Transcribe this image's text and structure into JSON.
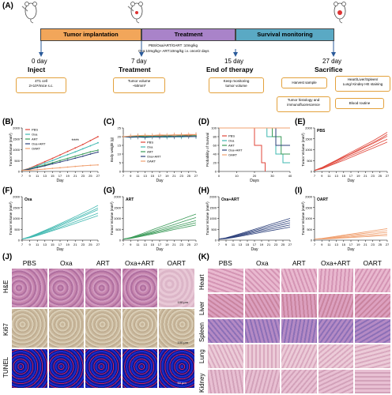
{
  "panel_labels": {
    "A": "(A)",
    "B": "(B)",
    "C": "(C)",
    "D": "(D)",
    "E": "(E)",
    "F": "(F)",
    "G": "(G)",
    "H": "(H)",
    "I": "(I)",
    "J": "(J)",
    "K": "(K)"
  },
  "timeline": {
    "phases": [
      "Tumor implantation",
      "Treatment",
      "Survival monitoring"
    ],
    "dosing": [
      "PBS/Oxa/ART/OART :10mg/kg",
      "Oxa:10mg/kg+ ART:10mg/kg i.v. once/2 days"
    ],
    "days": [
      "0 day",
      "7 day",
      "15 day",
      "27 day"
    ],
    "events": [
      "Inject",
      "Treatment",
      "End of therapy",
      "Sacrifice"
    ],
    "boxes": {
      "inject": [
        "4T1 cell",
        "2×10⁶/mice s.c."
      ],
      "treatment": [
        "Tumor volume",
        "~50mm³"
      ],
      "end": [
        "Keep monitoring",
        "tumor volume"
      ],
      "harvest": "Harvest sample",
      "staining": [
        "Heart/Liver/Spleen/",
        "Lung/ Kindey HE staining"
      ],
      "histology": [
        "Tumor histology and",
        "immunofluorescence"
      ],
      "blood": "Blood routine"
    }
  },
  "colors": {
    "PBS": "#e0463a",
    "Oxa": "#3fb8b0",
    "ART": "#3a9a58",
    "OxaART": "#2b3f7a",
    "OART": "#f0a070",
    "accent": "#e3a13c",
    "implant": "#f2a65a",
    "treat": "#a983c9",
    "survive": "#5aa9c4"
  },
  "chart_data": [
    {
      "type": "line",
      "panel": "B",
      "xlabel": "Day",
      "ylabel": "Tumor Volume (mm³)",
      "x": [
        7,
        9,
        11,
        13,
        15,
        17,
        19,
        21,
        23,
        25,
        27
      ],
      "xticks": [
        "7",
        "9",
        "11",
        "13",
        "15",
        "17",
        "19",
        "21",
        "23",
        "25",
        "27"
      ],
      "yticks": [
        "0",
        "500",
        "1000",
        "1500",
        "2000"
      ],
      "ylim": [
        0,
        2000
      ],
      "annotation": "****",
      "series": [
        {
          "name": "PBS",
          "values": [
            50,
            150,
            300,
            450,
            600,
            760,
            920,
            1080,
            1240,
            1420,
            1600
          ]
        },
        {
          "name": "Oxa",
          "values": [
            50,
            130,
            250,
            380,
            500,
            640,
            770,
            900,
            1040,
            1180,
            1320
          ]
        },
        {
          "name": "ART",
          "values": [
            50,
            110,
            200,
            300,
            400,
            500,
            600,
            700,
            800,
            900,
            980
          ]
        },
        {
          "name": "Oxa+ART",
          "values": [
            50,
            100,
            180,
            260,
            350,
            430,
            520,
            610,
            700,
            800,
            890
          ]
        },
        {
          "name": "OART",
          "values": [
            50,
            60,
            80,
            110,
            140,
            170,
            200,
            230,
            260,
            280,
            300
          ]
        }
      ]
    },
    {
      "type": "line",
      "panel": "C",
      "xlabel": "Day",
      "ylabel": "Body weight (g)",
      "x": [
        7,
        9,
        11,
        13,
        15,
        17,
        19,
        21,
        23,
        25,
        27
      ],
      "xticks": [
        "7",
        "9",
        "11",
        "13",
        "15",
        "17",
        "19",
        "21",
        "23",
        "25",
        "27"
      ],
      "yticks": [
        "0",
        "5",
        "10",
        "15",
        "20",
        "25"
      ],
      "ylim": [
        0,
        25
      ],
      "series": [
        {
          "name": "PBS",
          "values": [
            20,
            20.2,
            20.5,
            20.3,
            20.6,
            20.8,
            20.5,
            20.9,
            21,
            20.8,
            21.2
          ]
        },
        {
          "name": "Oxa",
          "values": [
            20,
            19.6,
            19.8,
            19.5,
            19.7,
            19.9,
            19.6,
            20,
            19.8,
            20.1,
            20
          ]
        },
        {
          "name": "ART",
          "values": [
            20,
            20.1,
            20.3,
            20.2,
            20.4,
            20.2,
            20.5,
            20.3,
            20.6,
            20.4,
            20.7
          ]
        },
        {
          "name": "Oxa+ART",
          "values": [
            20,
            19.8,
            19.9,
            19.7,
            20,
            19.8,
            20.1,
            19.9,
            20.2,
            20,
            20.1
          ]
        },
        {
          "name": "OART",
          "values": [
            20,
            20.4,
            20.6,
            20.8,
            20.7,
            21,
            20.9,
            21.1,
            21,
            21.3,
            21.2
          ]
        }
      ]
    },
    {
      "type": "line",
      "panel": "D",
      "xlabel": "Days",
      "ylabel": "Probability of Survival",
      "xticks": [
        "0",
        "10",
        "20",
        "30",
        "40"
      ],
      "yticks": [
        "0",
        "20",
        "40",
        "60",
        "80",
        "100"
      ],
      "xlim": [
        0,
        40
      ],
      "ylim": [
        0,
        100
      ],
      "series": [
        {
          "name": "PBS",
          "points": [
            [
              0,
              100
            ],
            [
              20,
              100
            ],
            [
              20,
              60
            ],
            [
              24,
              60
            ],
            [
              24,
              20
            ],
            [
              26,
              20
            ],
            [
              26,
              0
            ]
          ]
        },
        {
          "name": "Oxa",
          "points": [
            [
              0,
              100
            ],
            [
              27,
              100
            ],
            [
              27,
              80
            ],
            [
              32,
              80
            ],
            [
              32,
              40
            ],
            [
              36,
              40
            ],
            [
              36,
              20
            ],
            [
              40,
              20
            ]
          ]
        },
        {
          "name": "ART",
          "points": [
            [
              0,
              100
            ],
            [
              30,
              100
            ],
            [
              30,
              80
            ],
            [
              35,
              80
            ],
            [
              35,
              40
            ],
            [
              40,
              40
            ]
          ]
        },
        {
          "name": "Oxa+ART",
          "points": [
            [
              0,
              100
            ],
            [
              32,
              100
            ],
            [
              32,
              60
            ],
            [
              40,
              60
            ]
          ]
        },
        {
          "name": "OART",
          "points": [
            [
              0,
              100
            ],
            [
              40,
              100
            ]
          ]
        }
      ]
    },
    {
      "type": "line",
      "panel": "E",
      "group": "PBS",
      "ylabel": "Tumor Volume (mm³)",
      "xlabel": "Day",
      "yticks": [
        "0",
        "500",
        "1000",
        "1500",
        "2000"
      ],
      "ylim": [
        0,
        2000
      ],
      "x": [
        7,
        9,
        11,
        13,
        15,
        17,
        19,
        21,
        23,
        25,
        27
      ],
      "series": [
        {
          "values": [
            50,
            180,
            350,
            520,
            700,
            880,
            1050,
            1230,
            1400,
            1600,
            1800
          ]
        },
        {
          "values": [
            50,
            160,
            320,
            470,
            640,
            800,
            950,
            1120,
            1280,
            1450,
            1620
          ]
        },
        {
          "values": [
            50,
            140,
            280,
            420,
            580,
            730,
            870,
            1020,
            1170,
            1330,
            1480
          ]
        },
        {
          "values": [
            50,
            120,
            250,
            380,
            510,
            650,
            790,
            930,
            1070,
            1210,
            1350
          ]
        },
        {
          "values": [
            50,
            170,
            330,
            500,
            660,
            820,
            990,
            1160,
            1320,
            1500,
            1700
          ]
        }
      ]
    },
    {
      "type": "line",
      "panel": "F",
      "group": "Oxa",
      "ylabel": "Tumor Volume (mm³)",
      "xlabel": "Day",
      "yticks": [
        "0",
        "500",
        "1000",
        "1500",
        "2000"
      ],
      "ylim": [
        0,
        2000
      ],
      "x": [
        7,
        9,
        11,
        13,
        15,
        17,
        19,
        21,
        23,
        25,
        27
      ],
      "series": [
        {
          "values": [
            50,
            160,
            300,
            450,
            600,
            760,
            920,
            1080,
            1250,
            1420,
            1600
          ]
        },
        {
          "values": [
            50,
            140,
            260,
            390,
            520,
            660,
            800,
            950,
            1100,
            1250,
            1400
          ]
        },
        {
          "values": [
            50,
            120,
            230,
            350,
            470,
            590,
            720,
            850,
            980,
            1110,
            1240
          ]
        },
        {
          "values": [
            50,
            150,
            280,
            420,
            560,
            710,
            860,
            1010,
            1160,
            1320,
            1480
          ]
        },
        {
          "values": [
            50,
            110,
            210,
            320,
            430,
            540,
            650,
            770,
            890,
            1010,
            1130
          ]
        }
      ]
    },
    {
      "type": "line",
      "panel": "G",
      "group": "ART",
      "ylabel": "Tumor Volume (mm³)",
      "xlabel": "Day",
      "yticks": [
        "0",
        "500",
        "1000",
        "1500",
        "2000"
      ],
      "ylim": [
        0,
        2000
      ],
      "x": [
        7,
        9,
        11,
        13,
        15,
        17,
        19,
        21,
        23,
        25,
        27
      ],
      "series": [
        {
          "values": [
            50,
            120,
            230,
            350,
            480,
            600,
            720,
            840,
            960,
            1080,
            1200
          ]
        },
        {
          "values": [
            50,
            110,
            200,
            300,
            410,
            520,
            620,
            720,
            830,
            940,
            1040
          ]
        },
        {
          "values": [
            50,
            100,
            180,
            270,
            360,
            450,
            540,
            630,
            720,
            810,
            900
          ]
        },
        {
          "values": [
            50,
            90,
            160,
            240,
            320,
            400,
            480,
            560,
            640,
            720,
            800
          ]
        },
        {
          "values": [
            50,
            80,
            140,
            210,
            280,
            350,
            420,
            490,
            560,
            630,
            700
          ]
        }
      ]
    },
    {
      "type": "line",
      "panel": "H",
      "group": "Oxa+ART",
      "ylabel": "Tumor Volume (mm³)",
      "xlabel": "Day",
      "yticks": [
        "0",
        "500",
        "1000",
        "1500",
        "2000"
      ],
      "ylim": [
        0,
        2000
      ],
      "x": [
        7,
        9,
        11,
        13,
        15,
        17,
        19,
        21,
        23,
        25,
        27
      ],
      "series": [
        {
          "values": [
            50,
            110,
            200,
            300,
            400,
            500,
            600,
            700,
            800,
            900,
            1000
          ]
        },
        {
          "values": [
            50,
            100,
            180,
            270,
            360,
            450,
            540,
            630,
            720,
            810,
            900
          ]
        },
        {
          "values": [
            50,
            90,
            160,
            240,
            320,
            400,
            480,
            560,
            640,
            720,
            800
          ]
        },
        {
          "values": [
            50,
            80,
            140,
            210,
            280,
            350,
            420,
            490,
            560,
            630,
            700
          ]
        },
        {
          "values": [
            50,
            70,
            120,
            180,
            240,
            300,
            360,
            420,
            480,
            540,
            600
          ]
        }
      ]
    },
    {
      "type": "line",
      "panel": "I",
      "group": "OART",
      "ylabel": "Tumor Volume (mm³)",
      "xlabel": "Day",
      "yticks": [
        "0",
        "500",
        "1000",
        "1500",
        "2000"
      ],
      "ylim": [
        0,
        2000
      ],
      "x": [
        7,
        9,
        11,
        13,
        15,
        17,
        19,
        21,
        23,
        25,
        27
      ],
      "series": [
        {
          "values": [
            50,
            80,
            130,
            180,
            230,
            280,
            330,
            380,
            430,
            480,
            530
          ]
        },
        {
          "values": [
            50,
            70,
            110,
            150,
            200,
            240,
            280,
            320,
            360,
            400,
            440
          ]
        },
        {
          "values": [
            50,
            60,
            90,
            120,
            160,
            190,
            230,
            260,
            290,
            330,
            360
          ]
        },
        {
          "values": [
            50,
            55,
            80,
            100,
            130,
            150,
            180,
            200,
            230,
            250,
            280
          ]
        },
        {
          "values": [
            50,
            50,
            60,
            80,
            100,
            120,
            140,
            160,
            180,
            200,
            210
          ]
        }
      ]
    }
  ],
  "panelJ": {
    "columns": [
      "PBS",
      "Oxa",
      "ART",
      "Oxa+ART",
      "OART"
    ],
    "rows": [
      "H&E",
      "Ki67",
      "TUNEL"
    ],
    "scalebars": [
      "100 μm",
      "100 μm",
      "50 μm"
    ]
  },
  "panelK": {
    "columns": [
      "PBS",
      "Oxa",
      "ART",
      "Oxa+ART",
      "OART"
    ],
    "rows": [
      "Heart",
      "Liver",
      "Spleen",
      "Lung",
      "Kidney"
    ]
  }
}
